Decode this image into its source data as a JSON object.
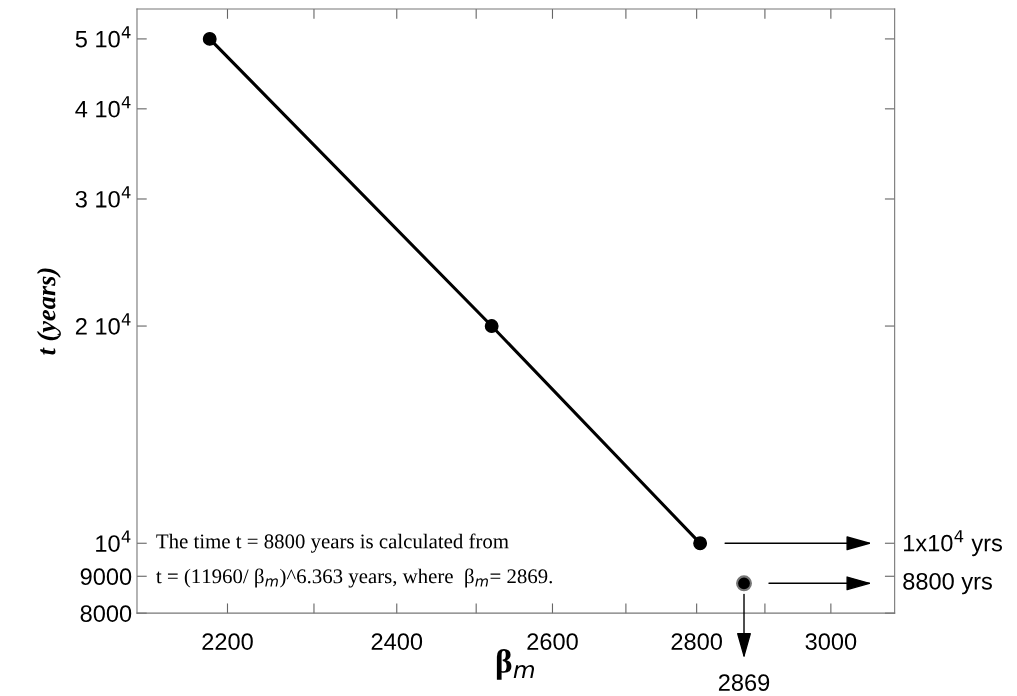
{
  "chart_data": {
    "type": "line",
    "xlabel": "β$_{m}$",
    "ylabel": "t (years)",
    "series": [
      {
        "type": "line",
        "color": "#000000",
        "x": [
          2180,
          2520,
          2805
        ],
        "values": [
          50000,
          20000,
          10000
        ]
      },
      {
        "type": "scatter",
        "color": "#000000",
        "x": [
          2869
        ],
        "values": [
          8800
        ]
      }
    ],
    "log": "xy",
    "marker": "circle",
    "xlim": [
      2100,
      3100
    ],
    "xticks": [
      2200,
      {
        "value": 2300,
        "label": null
      },
      2400,
      {
        "value": 2500,
        "label": null
      },
      2600,
      {
        "value": 2700,
        "label": null
      },
      2800,
      {
        "value": 2900,
        "label": null
      },
      3000
    ],
    "ylim": [
      8000,
      55000
    ],
    "yticks": [
      8000,
      9000,
      {
        "value": 10000,
        "label": "10$^{4}$"
      },
      {
        "value": 20000,
        "label": "2 10$^{4}$"
      },
      {
        "value": 30000,
        "label": "3 10$^{4}$"
      },
      {
        "value": 40000,
        "label": "4 10$^{4}$"
      },
      {
        "value": 50000,
        "label": "5 10$^{4}$"
      }
    ],
    "annotations": [
      "The time t = 8800 years is calculated from",
      "t = (11960/ β$_{m}$)^6.363 years, where  β$_{m}$= 2869.",
      "1x10$^{4}$ yrs",
      "8800 yrs",
      "2869"
    ]
  }
}
